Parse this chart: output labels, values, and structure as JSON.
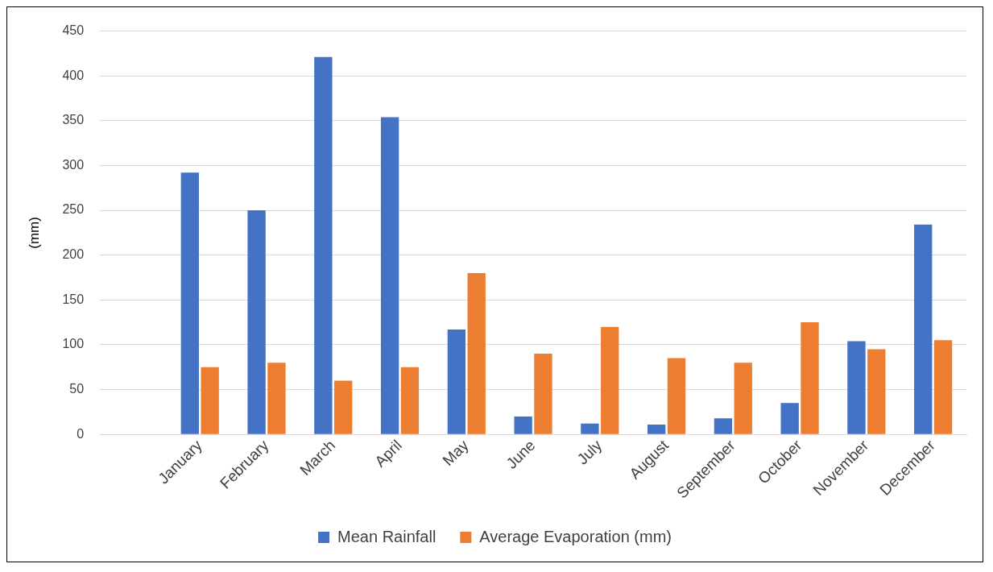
{
  "chart_data": {
    "type": "bar",
    "ylabel": "(mm)",
    "categories": [
      null,
      "January",
      "February",
      "March",
      "April",
      "May",
      "June",
      "July",
      "August",
      "September",
      "October",
      "November",
      "December"
    ],
    "series": [
      {
        "name": "Mean Rainfall",
        "color": "#4472c4",
        "values": [
          null,
          292,
          250,
          421,
          354,
          117,
          20,
          12,
          11,
          18,
          35,
          104,
          234
        ]
      },
      {
        "name": "Average Evaporation (mm)",
        "color": "#ed7d31",
        "values": [
          null,
          75,
          80,
          60,
          75,
          180,
          90,
          120,
          85,
          80,
          125,
          95,
          105
        ]
      }
    ],
    "ylim": [
      0,
      450
    ],
    "yticks": [
      0,
      50,
      100,
      150,
      200,
      250,
      300,
      350,
      400,
      450
    ],
    "grid": "y",
    "legend": "bottom"
  }
}
